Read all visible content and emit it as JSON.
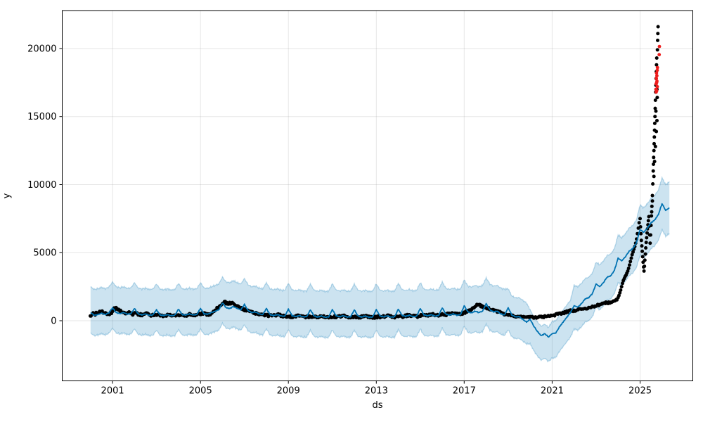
{
  "chart_data": {
    "type": "line",
    "title": "",
    "xlabel": "ds",
    "ylabel": "y",
    "legend": "none",
    "grid": true,
    "x_ticks": [
      2001,
      2005,
      2009,
      2013,
      2017,
      2021,
      2025
    ],
    "y_ticks": [
      0,
      5000,
      10000,
      15000,
      20000
    ],
    "xlim": [
      1998.71,
      2027.4
    ],
    "ylim": [
      -4419,
      22790
    ],
    "colors": {
      "actual_points": "#000000",
      "forecast_line": "#0072B2",
      "uncertainty_band": "#0072B2",
      "band_opacity": 0.2,
      "anomaly_points": "#ee1c1c",
      "grid_line": "rgba(128,128,128,0.2)",
      "spine": "#000000"
    },
    "forecast": {
      "start_year": 2000.0,
      "points_per_year": 6,
      "yhat": [
        600,
        400,
        450,
        550,
        450,
        580,
        950,
        600,
        520,
        600,
        480,
        520,
        900,
        500,
        430,
        500,
        400,
        430,
        800,
        420,
        380,
        450,
        360,
        400,
        850,
        450,
        420,
        500,
        420,
        460,
        900,
        500,
        480,
        600,
        700,
        800,
        1300,
        950,
        900,
        1050,
        900,
        800,
        1200,
        750,
        600,
        650,
        500,
        450,
        900,
        450,
        380,
        450,
        350,
        330,
        850,
        380,
        300,
        380,
        280,
        300,
        800,
        350,
        270,
        350,
        250,
        280,
        820,
        370,
        290,
        370,
        270,
        290,
        800,
        350,
        270,
        350,
        250,
        280,
        810,
        360,
        280,
        360,
        260,
        290,
        850,
        400,
        320,
        400,
        300,
        330,
        900,
        430,
        360,
        440,
        340,
        380,
        950,
        480,
        410,
        500,
        400,
        450,
        1100,
        650,
        580,
        700,
        600,
        700,
        1250,
        800,
        650,
        700,
        500,
        420,
        950,
        420,
        280,
        300,
        100,
        -100,
        100,
        -400,
        -800,
        -1100,
        -950,
        -1200,
        -950,
        -900,
        -450,
        -100,
        250,
        600,
        1100,
        1000,
        1250,
        1600,
        1700,
        2000,
        2700,
        2500,
        2800,
        3200,
        3300,
        3700,
        4600,
        4400,
        4700,
        5100,
        5300,
        5700,
        6700,
        6500,
        6800,
        7200,
        7400,
        7800,
        8600,
        8100,
        8300
      ],
      "upper": [
        2500,
        2300,
        2350,
        2450,
        2350,
        2480,
        2850,
        2500,
        2420,
        2500,
        2380,
        2420,
        2800,
        2400,
        2330,
        2400,
        2300,
        2330,
        2700,
        2320,
        2280,
        2350,
        2260,
        2300,
        2750,
        2350,
        2320,
        2400,
        2320,
        2360,
        2800,
        2400,
        2380,
        2500,
        2600,
        2700,
        3200,
        2850,
        2800,
        2950,
        2800,
        2700,
        3100,
        2650,
        2500,
        2550,
        2400,
        2350,
        2800,
        2350,
        2280,
        2350,
        2250,
        2230,
        2750,
        2280,
        2200,
        2280,
        2180,
        2200,
        2700,
        2250,
        2170,
        2250,
        2150,
        2180,
        2720,
        2270,
        2190,
        2270,
        2170,
        2190,
        2700,
        2250,
        2170,
        2250,
        2150,
        2180,
        2710,
        2260,
        2180,
        2260,
        2160,
        2190,
        2750,
        2300,
        2220,
        2300,
        2200,
        2230,
        2800,
        2330,
        2260,
        2340,
        2240,
        2280,
        2850,
        2380,
        2310,
        2400,
        2300,
        2350,
        3000,
        2550,
        2480,
        2600,
        2500,
        2600,
        3150,
        2700,
        2550,
        2600,
        2400,
        2320,
        2350,
        1820,
        1680,
        1700,
        1500,
        1300,
        800,
        300,
        -100,
        -400,
        -250,
        -500,
        -50,
        0,
        450,
        800,
        1150,
        1500,
        2600,
        2500,
        2750,
        3100,
        3200,
        3500,
        4300,
        4100,
        4400,
        4800,
        4900,
        5300,
        6300,
        6100,
        6400,
        6800,
        7000,
        7400,
        8500,
        8300,
        8600,
        9000,
        9200,
        9600,
        10500,
        10000,
        10200
      ],
      "lower": [
        -900,
        -1100,
        -1050,
        -950,
        -1050,
        -920,
        -550,
        -900,
        -980,
        -900,
        -1020,
        -980,
        -600,
        -1000,
        -1070,
        -1000,
        -1100,
        -1070,
        -700,
        -1080,
        -1120,
        -1050,
        -1140,
        -1100,
        -650,
        -1050,
        -1080,
        -1000,
        -1080,
        -1040,
        -600,
        -1000,
        -1020,
        -900,
        -800,
        -700,
        -200,
        -550,
        -600,
        -450,
        -600,
        -700,
        -300,
        -750,
        -900,
        -850,
        -1000,
        -1050,
        -600,
        -1050,
        -1120,
        -1050,
        -1150,
        -1170,
        -650,
        -1120,
        -1200,
        -1120,
        -1220,
        -1200,
        -700,
        -1150,
        -1230,
        -1150,
        -1250,
        -1220,
        -680,
        -1130,
        -1210,
        -1130,
        -1230,
        -1210,
        -700,
        -1150,
        -1230,
        -1150,
        -1250,
        -1220,
        -690,
        -1140,
        -1220,
        -1140,
        -1240,
        -1210,
        -650,
        -1100,
        -1180,
        -1100,
        -1200,
        -1170,
        -600,
        -1070,
        -1140,
        -1060,
        -1160,
        -1120,
        -550,
        -1020,
        -1090,
        -1000,
        -1100,
        -1050,
        -400,
        -850,
        -920,
        -800,
        -900,
        -800,
        -250,
        -700,
        -850,
        -800,
        -1000,
        -1080,
        -650,
        -1180,
        -1320,
        -1300,
        -1500,
        -1700,
        -1700,
        -2200,
        -2600,
        -2900,
        -2750,
        -3000,
        -2750,
        -2700,
        -2250,
        -1900,
        -1550,
        -1200,
        -600,
        -700,
        -450,
        -100,
        0,
        300,
        1000,
        800,
        1100,
        1500,
        1600,
        2000,
        2800,
        2600,
        2900,
        3300,
        3500,
        3900,
        4800,
        4600,
        4900,
        5300,
        5500,
        5900,
        6700,
        6200,
        6400
      ]
    },
    "actuals": {
      "start_year": 2000.0,
      "points_per_year": 12,
      "values": [
        420,
        520,
        480,
        560,
        600,
        650,
        700,
        620,
        540,
        480,
        520,
        580,
        750,
        900,
        950,
        850,
        700,
        620,
        580,
        540,
        560,
        600,
        520,
        480,
        520,
        560,
        480,
        440,
        420,
        460,
        500,
        480,
        440,
        400,
        420,
        440,
        380,
        400,
        360,
        340,
        360,
        400,
        440,
        420,
        380,
        360,
        380,
        400,
        420,
        460,
        440,
        400,
        380,
        420,
        480,
        460,
        420,
        400,
        440,
        480,
        500,
        540,
        520,
        480,
        460,
        500,
        560,
        640,
        760,
        900,
        1050,
        1150,
        1250,
        1350,
        1300,
        1200,
        1280,
        1320,
        1250,
        1150,
        1050,
        980,
        900,
        850,
        800,
        750,
        700,
        680,
        650,
        600,
        560,
        520,
        480,
        450,
        430,
        420,
        400,
        380,
        360,
        380,
        400,
        420,
        440,
        420,
        380,
        340,
        320,
        310,
        300,
        290,
        280,
        300,
        320,
        340,
        360,
        340,
        300,
        280,
        260,
        270,
        280,
        270,
        260,
        280,
        300,
        320,
        340,
        320,
        290,
        270,
        260,
        270,
        290,
        300,
        280,
        300,
        320,
        340,
        360,
        330,
        300,
        280,
        270,
        280,
        270,
        260,
        250,
        270,
        290,
        310,
        330,
        310,
        280,
        260,
        250,
        260,
        280,
        290,
        270,
        290,
        310,
        330,
        350,
        330,
        300,
        280,
        270,
        280,
        320,
        330,
        310,
        330,
        350,
        380,
        400,
        380,
        350,
        330,
        320,
        340,
        380,
        400,
        380,
        400,
        420,
        450,
        480,
        450,
        420,
        400,
        390,
        410,
        450,
        470,
        450,
        480,
        510,
        540,
        570,
        540,
        510,
        490,
        480,
        520,
        600,
        650,
        700,
        780,
        850,
        950,
        1100,
        1200,
        1150,
        1100,
        1050,
        1000,
        950,
        900,
        850,
        800,
        780,
        750,
        700,
        650,
        600,
        550,
        500,
        450,
        400,
        380,
        350,
        330,
        310,
        300,
        290,
        280,
        270,
        260,
        255,
        250,
        250,
        245,
        240,
        250,
        260,
        270,
        280,
        300,
        320,
        340,
        360,
        380,
        400,
        420,
        450,
        480,
        510,
        540,
        570,
        600,
        640,
        680,
        720,
        750,
        760,
        780,
        800,
        820,
        840,
        860,
        880,
        920,
        960,
        1000,
        1040,
        1080,
        1100,
        1150,
        1200,
        1250,
        1300,
        1320,
        1280,
        1320,
        1360,
        1400,
        1450,
        1550
      ]
    },
    "actuals_spike": [
      [
        2024.0,
        1700
      ],
      [
        2024.04,
        1850
      ],
      [
        2024.08,
        2050
      ],
      [
        2024.12,
        2250
      ],
      [
        2024.16,
        2500
      ],
      [
        2024.2,
        2750
      ],
      [
        2024.24,
        2950
      ],
      [
        2024.28,
        3100
      ],
      [
        2024.32,
        3250
      ],
      [
        2024.36,
        3350
      ],
      [
        2024.4,
        3500
      ],
      [
        2024.44,
        3650
      ],
      [
        2024.48,
        3850
      ],
      [
        2024.52,
        4100
      ],
      [
        2024.56,
        4350
      ],
      [
        2024.6,
        4600
      ],
      [
        2024.64,
        4850
      ],
      [
        2024.68,
        5050
      ],
      [
        2024.72,
        5250
      ],
      [
        2024.76,
        5450
      ],
      [
        2024.8,
        5700
      ],
      [
        2024.84,
        6000
      ],
      [
        2024.88,
        6400
      ],
      [
        2024.92,
        6800
      ],
      [
        2024.96,
        7200
      ],
      [
        2025.0,
        7500
      ],
      [
        2025.02,
        6900
      ],
      [
        2025.04,
        6400
      ],
      [
        2025.06,
        5900
      ],
      [
        2025.08,
        5500
      ],
      [
        2025.1,
        5100
      ],
      [
        2025.12,
        4700
      ],
      [
        2025.14,
        4300
      ],
      [
        2025.16,
        3950
      ],
      [
        2025.18,
        3650
      ],
      [
        2025.2,
        4000
      ],
      [
        2025.22,
        4450
      ],
      [
        2025.24,
        4900
      ],
      [
        2025.26,
        5350
      ],
      [
        2025.28,
        5750
      ],
      [
        2025.3,
        6100
      ],
      [
        2025.32,
        6450
      ],
      [
        2025.34,
        6750
      ],
      [
        2025.36,
        7050
      ],
      [
        2025.38,
        7350
      ],
      [
        2025.4,
        7650
      ],
      [
        2025.42,
        6950
      ],
      [
        2025.44,
        6300
      ],
      [
        2025.46,
        5700
      ],
      [
        2025.48,
        6300
      ],
      [
        2025.5,
        7000
      ],
      [
        2025.52,
        7700
      ],
      [
        2025.54,
        8400
      ],
      [
        2025.56,
        9200
      ],
      [
        2025.58,
        10050
      ],
      [
        2025.6,
        11000
      ],
      [
        2025.61,
        11500
      ],
      [
        2025.62,
        12000
      ],
      [
        2025.63,
        12500
      ],
      [
        2025.64,
        13000
      ],
      [
        2025.65,
        13500
      ],
      [
        2025.66,
        14000
      ],
      [
        2025.67,
        14500
      ],
      [
        2025.68,
        15000
      ],
      [
        2025.69,
        15600
      ],
      [
        2025.7,
        16200
      ],
      [
        2025.71,
        16800
      ],
      [
        2025.72,
        17300
      ],
      [
        2025.73,
        17800
      ],
      [
        2025.74,
        18300
      ],
      [
        2025.75,
        18800
      ],
      [
        2025.76,
        19300
      ],
      [
        2025.77,
        17000
      ],
      [
        2025.78,
        16400
      ],
      [
        2025.79,
        19900
      ],
      [
        2025.8,
        20600
      ],
      [
        2025.81,
        21100
      ],
      [
        2025.82,
        21600
      ],
      [
        2025.7,
        12800
      ],
      [
        2025.66,
        11700
      ],
      [
        2025.74,
        13900
      ],
      [
        2025.77,
        14700
      ],
      [
        2025.72,
        15400
      ],
      [
        2025.63,
        10600
      ],
      [
        2025.56,
        8800
      ],
      [
        2025.53,
        8000
      ]
    ],
    "anomalies": [
      [
        2025.72,
        17000
      ],
      [
        2025.73,
        17400
      ],
      [
        2025.735,
        16800
      ],
      [
        2025.74,
        17800
      ],
      [
        2025.75,
        18200
      ],
      [
        2025.755,
        17500
      ],
      [
        2025.76,
        16900
      ],
      [
        2025.765,
        18000
      ],
      [
        2025.77,
        17600
      ],
      [
        2025.78,
        18400
      ],
      [
        2025.785,
        17200
      ],
      [
        2025.79,
        18600
      ],
      [
        2025.87,
        19550
      ],
      [
        2025.88,
        20150
      ]
    ]
  }
}
